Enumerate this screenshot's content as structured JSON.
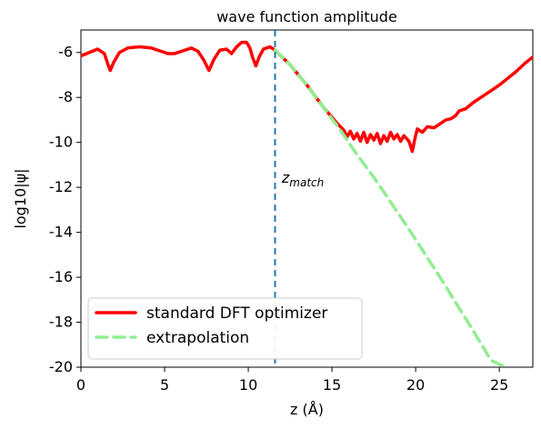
{
  "chart_data": {
    "type": "line",
    "title": "wave function amplitude",
    "xlabel": "z (Å)",
    "ylabel": "log10|ψ|",
    "xlim": [
      0,
      27
    ],
    "ylim": [
      -20,
      -5
    ],
    "xticks": [
      0,
      5,
      10,
      15,
      20,
      25
    ],
    "yticks": [
      -20,
      -18,
      -16,
      -14,
      -12,
      -10,
      -8,
      -6
    ],
    "grid": false,
    "legend": {
      "placement": "lower-left",
      "entries": [
        "standard DFT optimizer",
        "extrapolation"
      ]
    },
    "series": [
      {
        "name": "standard DFT optimizer",
        "color": "#ff0000",
        "style": "solid",
        "points": [
          [
            0.0,
            -6.15
          ],
          [
            0.5,
            -6.0
          ],
          [
            1.0,
            -5.85
          ],
          [
            1.4,
            -6.05
          ],
          [
            1.6,
            -6.5
          ],
          [
            1.75,
            -6.8
          ],
          [
            1.95,
            -6.45
          ],
          [
            2.3,
            -6.0
          ],
          [
            2.8,
            -5.8
          ],
          [
            3.5,
            -5.75
          ],
          [
            4.2,
            -5.8
          ],
          [
            4.8,
            -5.95
          ],
          [
            5.2,
            -6.05
          ],
          [
            5.6,
            -6.05
          ],
          [
            6.0,
            -5.95
          ],
          [
            6.6,
            -5.8
          ],
          [
            7.0,
            -5.95
          ],
          [
            7.35,
            -6.35
          ],
          [
            7.65,
            -6.8
          ],
          [
            7.95,
            -6.3
          ],
          [
            8.3,
            -5.9
          ],
          [
            8.7,
            -5.85
          ],
          [
            9.0,
            -6.05
          ],
          [
            9.3,
            -5.75
          ],
          [
            9.6,
            -5.55
          ],
          [
            9.9,
            -5.55
          ],
          [
            10.1,
            -5.8
          ],
          [
            10.25,
            -6.2
          ],
          [
            10.45,
            -6.6
          ],
          [
            10.65,
            -6.2
          ],
          [
            10.9,
            -5.85
          ],
          [
            11.3,
            -5.75
          ],
          [
            11.6,
            -5.9
          ],
          [
            12.5,
            -6.55
          ],
          [
            13.5,
            -7.45
          ],
          [
            14.5,
            -8.45
          ],
          [
            15.3,
            -9.15
          ],
          [
            15.7,
            -9.45
          ],
          [
            15.9,
            -9.75
          ],
          [
            16.1,
            -9.5
          ],
          [
            16.3,
            -9.85
          ],
          [
            16.5,
            -9.6
          ],
          [
            16.7,
            -9.95
          ],
          [
            16.9,
            -9.55
          ],
          [
            17.1,
            -10.0
          ],
          [
            17.3,
            -9.65
          ],
          [
            17.5,
            -9.9
          ],
          [
            17.7,
            -9.6
          ],
          [
            17.9,
            -10.05
          ],
          [
            18.1,
            -9.7
          ],
          [
            18.3,
            -9.95
          ],
          [
            18.5,
            -9.55
          ],
          [
            18.7,
            -9.85
          ],
          [
            18.9,
            -9.65
          ],
          [
            19.1,
            -9.95
          ],
          [
            19.3,
            -9.7
          ],
          [
            19.6,
            -9.95
          ],
          [
            19.8,
            -10.4
          ],
          [
            19.95,
            -9.85
          ],
          [
            20.1,
            -9.4
          ],
          [
            20.4,
            -9.55
          ],
          [
            20.7,
            -9.3
          ],
          [
            21.1,
            -9.35
          ],
          [
            21.5,
            -9.15
          ],
          [
            21.8,
            -9.0
          ],
          [
            22.1,
            -8.95
          ],
          [
            22.4,
            -8.8
          ],
          [
            22.6,
            -8.6
          ],
          [
            23.0,
            -8.5
          ],
          [
            23.4,
            -8.25
          ],
          [
            24.0,
            -7.95
          ],
          [
            24.5,
            -7.7
          ],
          [
            25.0,
            -7.45
          ],
          [
            25.5,
            -7.15
          ],
          [
            26.0,
            -6.85
          ],
          [
            26.5,
            -6.5
          ],
          [
            27.0,
            -6.2
          ]
        ]
      },
      {
        "name": "extrapolation",
        "color": "#90ee90",
        "style": "dashed",
        "points": [
          [
            11.6,
            -5.9
          ],
          [
            12.5,
            -6.55
          ],
          [
            13.5,
            -7.45
          ],
          [
            14.5,
            -8.45
          ],
          [
            15.5,
            -9.45
          ],
          [
            16.5,
            -10.55
          ],
          [
            17.5,
            -11.55
          ],
          [
            18.5,
            -12.65
          ],
          [
            19.5,
            -13.75
          ],
          [
            20.5,
            -14.9
          ],
          [
            21.5,
            -16.05
          ],
          [
            22.5,
            -17.25
          ],
          [
            23.5,
            -18.45
          ],
          [
            24.5,
            -19.7
          ],
          [
            25.4,
            -20.0
          ]
        ]
      }
    ],
    "annotations": [
      {
        "text": "z",
        "subscript": "match",
        "x": 12.0,
        "y": -11.8
      }
    ],
    "reference_lines": [
      {
        "orientation": "vertical",
        "x": 11.6,
        "color": "#1f77b4",
        "style": "dashed"
      }
    ]
  }
}
